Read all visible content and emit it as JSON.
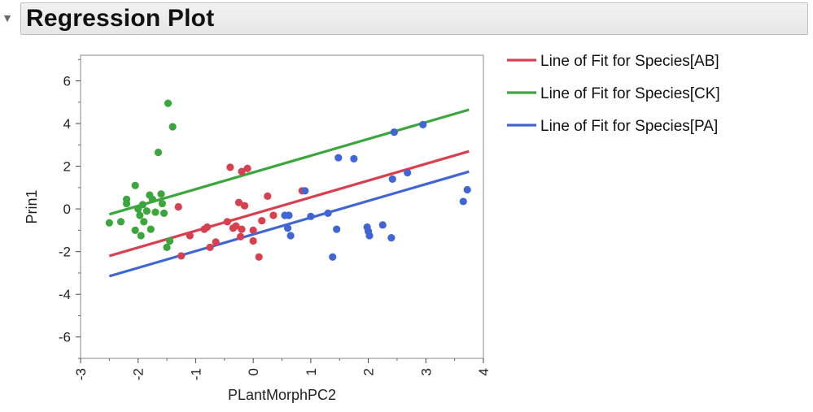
{
  "header": {
    "title": "Regression Plot",
    "collapse_icon": "triangle-down-icon"
  },
  "chart_data": {
    "type": "scatter",
    "title": "Regression Plot",
    "xlabel": "PLantMorphPC2",
    "ylabel": "Prin1",
    "xlim": [
      -3,
      4
    ],
    "ylim": [
      -7,
      7.2
    ],
    "xticks": [
      -3,
      -2,
      -1,
      0,
      1,
      2,
      3,
      4
    ],
    "yticks": [
      -6,
      -4,
      -2,
      0,
      2,
      4,
      6
    ],
    "grid": false,
    "legend_position": "right",
    "series": [
      {
        "name": "Line of Fit for Species[AB]",
        "color": "#d8404f",
        "line": {
          "x": [
            -2.5,
            3.75
          ],
          "y": [
            -2.2,
            2.7
          ]
        },
        "points": [
          [
            -1.3,
            0.1
          ],
          [
            -1.25,
            -2.2
          ],
          [
            -1.1,
            -1.25
          ],
          [
            -0.85,
            -0.95
          ],
          [
            -0.8,
            -0.85
          ],
          [
            -0.75,
            -1.8
          ],
          [
            -0.65,
            -1.55
          ],
          [
            -0.45,
            -0.6
          ],
          [
            -0.4,
            1.95
          ],
          [
            -0.35,
            -0.9
          ],
          [
            -0.3,
            -0.8
          ],
          [
            -0.25,
            0.3
          ],
          [
            -0.22,
            -1.3
          ],
          [
            -0.2,
            -0.95
          ],
          [
            -0.2,
            1.75
          ],
          [
            -0.15,
            0.15
          ],
          [
            -0.1,
            1.9
          ],
          [
            0.0,
            -1.0
          ],
          [
            0.0,
            -1.5
          ],
          [
            0.1,
            -2.25
          ],
          [
            0.15,
            -0.55
          ],
          [
            0.25,
            0.6
          ],
          [
            0.35,
            -0.3
          ],
          [
            0.85,
            0.85
          ]
        ]
      },
      {
        "name": "Line of Fit for Species[CK]",
        "color": "#3aa63c",
        "line": {
          "x": [
            -2.5,
            3.75
          ],
          "y": [
            -0.25,
            4.65
          ]
        },
        "points": [
          [
            -2.5,
            -0.65
          ],
          [
            -2.3,
            -0.6
          ],
          [
            -2.2,
            0.45
          ],
          [
            -2.2,
            0.25
          ],
          [
            -2.05,
            -1.0
          ],
          [
            -2.05,
            1.1
          ],
          [
            -2.0,
            0.0
          ],
          [
            -1.97,
            -0.3
          ],
          [
            -1.95,
            -1.25
          ],
          [
            -1.92,
            0.2
          ],
          [
            -1.9,
            -0.6
          ],
          [
            -1.85,
            -0.1
          ],
          [
            -1.8,
            0.65
          ],
          [
            -1.78,
            -0.95
          ],
          [
            -1.75,
            0.45
          ],
          [
            -1.7,
            -0.15
          ],
          [
            -1.65,
            2.65
          ],
          [
            -1.6,
            0.7
          ],
          [
            -1.58,
            0.25
          ],
          [
            -1.55,
            -0.2
          ],
          [
            -1.5,
            -1.8
          ],
          [
            -1.48,
            4.95
          ],
          [
            -1.45,
            -1.5
          ],
          [
            -1.4,
            3.85
          ]
        ]
      },
      {
        "name": "Line of Fit for Species[PA]",
        "color": "#4066d6",
        "line": {
          "x": [
            -2.5,
            3.75
          ],
          "y": [
            -3.15,
            1.75
          ]
        },
        "points": [
          [
            0.55,
            -0.3
          ],
          [
            0.6,
            -0.9
          ],
          [
            0.62,
            -0.3
          ],
          [
            0.65,
            -1.25
          ],
          [
            0.9,
            0.85
          ],
          [
            1.0,
            -0.35
          ],
          [
            1.3,
            -0.2
          ],
          [
            1.38,
            -2.25
          ],
          [
            1.45,
            -0.95
          ],
          [
            1.48,
            2.4
          ],
          [
            1.75,
            2.35
          ],
          [
            1.98,
            -0.85
          ],
          [
            2.0,
            -1.05
          ],
          [
            2.02,
            -1.25
          ],
          [
            2.25,
            -0.75
          ],
          [
            2.4,
            -1.35
          ],
          [
            2.42,
            1.4
          ],
          [
            2.45,
            3.6
          ],
          [
            2.68,
            1.7
          ],
          [
            2.95,
            3.95
          ],
          [
            3.65,
            0.35
          ],
          [
            3.72,
            0.9
          ]
        ]
      }
    ]
  }
}
